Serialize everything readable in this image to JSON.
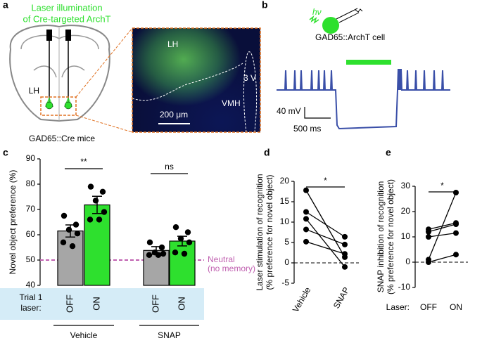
{
  "figure": {
    "panel_labels": [
      "a",
      "b",
      "c",
      "d",
      "e"
    ],
    "a": {
      "laser_title": [
        "Laser  illumination",
        "of Cre-targeted ArchT"
      ],
      "region": "LH",
      "caption": "GAD65::Cre mice",
      "image_labels": [
        "LH",
        "VMH",
        "3 V"
      ],
      "scale_bar": "200 μm"
    },
    "b": {
      "photon": "hν",
      "cell": "GAD65::ArchT cell",
      "scale_v": "40 mV",
      "scale_t": "500 ms"
    }
  },
  "chart_data": [
    {
      "type": "bar",
      "ylabel": "Novel object preference (%)",
      "categories": [
        "OFF",
        "ON",
        "OFF",
        "ON"
      ],
      "groups": [
        "Vehicle",
        "SNAP"
      ],
      "category_title": [
        "Trial 1",
        "laser:"
      ],
      "values": [
        61.5,
        71.8,
        53.8,
        57.5
      ],
      "errors": [
        2.4,
        3.4,
        1.5,
        1.9
      ],
      "points": [
        [
          67.5,
          64,
          62,
          60.5,
          57,
          55.5
        ],
        [
          79,
          77,
          73.5,
          69,
          66,
          66
        ],
        [
          57,
          55,
          53,
          52.5,
          52,
          52
        ],
        [
          63,
          61,
          58.5,
          57,
          53,
          52.5
        ]
      ],
      "colors": [
        "#a6a6a6",
        "#2ee02e",
        "#a6a6a6",
        "#2ee02e"
      ],
      "ylim": [
        40,
        90
      ],
      "yticks": [
        40,
        50,
        60,
        70,
        80,
        90
      ],
      "reference": {
        "value": 50,
        "label": [
          "Neutral",
          "(no memory)"
        ],
        "color": "#c060b0"
      },
      "significance": [
        "**",
        "ns"
      ]
    },
    {
      "type": "paired",
      "ylabel": [
        "Laser stimulation of recognition",
        "(% preference for novel object)"
      ],
      "categories": [
        "Vehicle",
        "SNAP"
      ],
      "series": [
        {
          "values": [
            17.8,
            1.4
          ]
        },
        {
          "values": [
            12.5,
            6.4
          ]
        },
        {
          "values": [
            10.8,
            -1.0
          ]
        },
        {
          "values": [
            8.2,
            4.5
          ]
        },
        {
          "values": [
            5.2,
            2.2
          ]
        }
      ],
      "ylim": [
        -5,
        20
      ],
      "yticks": [
        -5,
        0,
        5,
        10,
        15,
        20
      ],
      "reference": 0,
      "significance": "*"
    },
    {
      "type": "paired",
      "ylabel": [
        "SNAP inhibition of recognition",
        "(% preference for novel object)"
      ],
      "xlabel": "Laser:",
      "categories": [
        "OFF",
        "ON"
      ],
      "series": [
        {
          "values": [
            13,
            15.5
          ]
        },
        {
          "values": [
            12,
            15
          ]
        },
        {
          "values": [
            10,
            11.5
          ]
        },
        {
          "values": [
            1,
            27.5
          ]
        },
        {
          "values": [
            0,
            3
          ]
        }
      ],
      "ylim": [
        -10,
        30
      ],
      "yticks": [
        -10,
        0,
        10,
        20,
        30
      ],
      "reference": 0,
      "significance": "*"
    }
  ]
}
